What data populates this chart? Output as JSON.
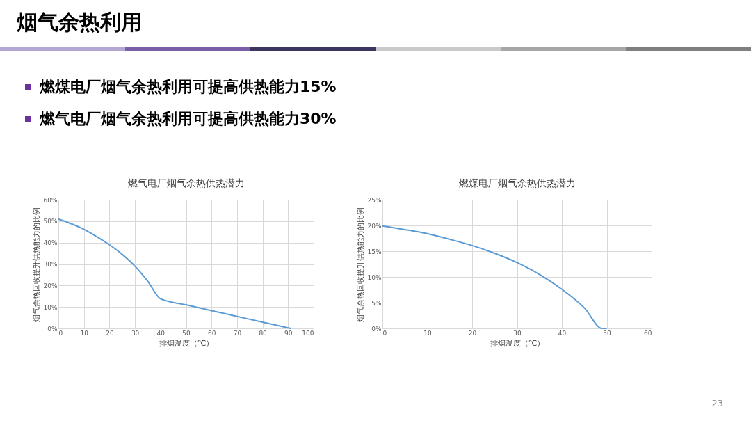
{
  "chart_data": [
    {
      "type": "other",
      "title": "烟气余热利用",
      "annotations": [
        "燃煤电厂烟气余热利用可提高供热能力15%",
        "燃气电厂烟气余热利用可提高供热能力30%",
        "23"
      ]
    },
    {
      "type": "line",
      "title": "燃气电厂烟气余热供热潜力",
      "xlabel": "排烟温度（℃）",
      "ylabel": "烟气余热回收提升供热能力的比例",
      "x": [
        0,
        5,
        10,
        15,
        20,
        25,
        30,
        35,
        40,
        50,
        60,
        70,
        80,
        91
      ],
      "series": [
        {
          "color": "#5b9bd5",
          "values": [
            51,
            48.8,
            46.2,
            42.8,
            39,
            34.5,
            29,
            22,
            13.8,
            11,
            8.3,
            5.6,
            2.9,
            0
          ]
        }
      ],
      "xlim": [
        0,
        100
      ],
      "xticks": [
        0,
        10,
        20,
        30,
        40,
        50,
        60,
        70,
        80,
        90,
        100
      ],
      "ylim": [
        0,
        60
      ],
      "yticks": [
        {
          "value": 0,
          "label": "0%"
        },
        {
          "value": 10,
          "label": "10%"
        },
        {
          "value": 20,
          "label": "20%"
        },
        {
          "value": 30,
          "label": "30%"
        },
        {
          "value": 40,
          "label": "40%"
        },
        {
          "value": 50,
          "label": "50%"
        },
        {
          "value": 60,
          "label": "60%"
        }
      ],
      "grid": true,
      "marker": "none",
      "line_style": "solid"
    },
    {
      "type": "line",
      "title": "燃煤电厂烟气余热供热潜力",
      "xlabel": "排烟温度（℃）",
      "ylabel": "烟气余热回收提升供热能力的比例",
      "x": [
        0,
        5,
        10,
        15,
        20,
        25,
        30,
        35,
        40,
        45,
        49,
        50
      ],
      "series": [
        {
          "color": "#5b9bd5",
          "values": [
            19.9,
            19.2,
            18.4,
            17.3,
            16.1,
            14.6,
            12.8,
            10.5,
            7.6,
            4,
            0,
            0
          ]
        }
      ],
      "xlim": [
        0,
        60
      ],
      "xticks": [
        0,
        10,
        20,
        30,
        40,
        50,
        60
      ],
      "ylim": [
        0,
        25
      ],
      "yticks": [
        {
          "value": 0,
          "label": "0%"
        },
        {
          "value": 5,
          "label": "5%"
        },
        {
          "value": 10,
          "label": "10%"
        },
        {
          "value": 15,
          "label": "15%"
        },
        {
          "value": 20,
          "label": "20%"
        },
        {
          "value": 25,
          "label": "25%"
        }
      ],
      "grid": true,
      "marker": "none",
      "line_style": "solid"
    }
  ]
}
